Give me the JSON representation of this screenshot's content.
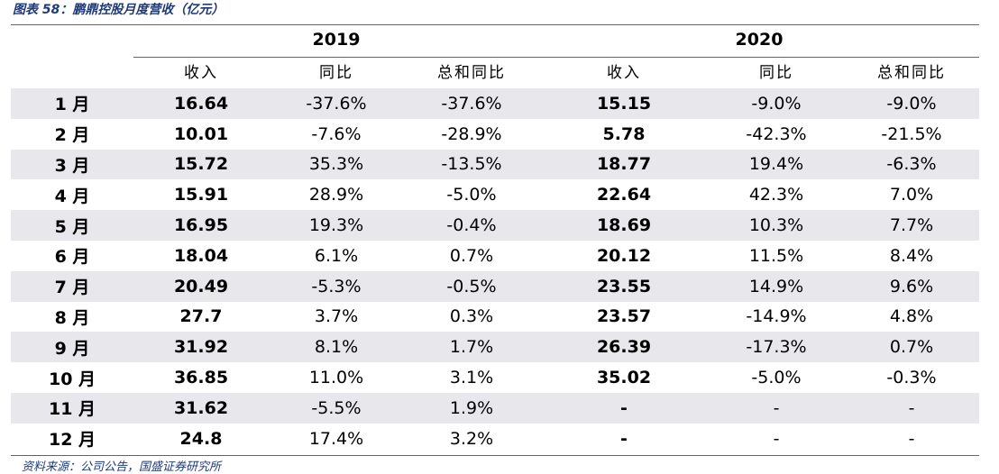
{
  "caption": "图表 58：鹏鼎控股月度营收（亿元）",
  "source": "资料来源：公司公告，国盛证券研究所",
  "years": [
    "2019",
    "2020"
  ],
  "columns": [
    "收入",
    "同比",
    "总和同比",
    "收入",
    "同比",
    "总和同比"
  ],
  "rows": [
    {
      "month": "1 月",
      "r2019": "16.64",
      "yoy2019": "-37.6%",
      "cum2019": "-37.6%",
      "r2020": "15.15",
      "yoy2020": "-9.0%",
      "cum2020": "-9.0%"
    },
    {
      "month": "2 月",
      "r2019": "10.01",
      "yoy2019": "-7.6%",
      "cum2019": "-28.9%",
      "r2020": "5.78",
      "yoy2020": "-42.3%",
      "cum2020": "-21.5%"
    },
    {
      "month": "3 月",
      "r2019": "15.72",
      "yoy2019": "35.3%",
      "cum2019": "-13.5%",
      "r2020": "18.77",
      "yoy2020": "19.4%",
      "cum2020": "-6.3%"
    },
    {
      "month": "4 月",
      "r2019": "15.91",
      "yoy2019": "28.9%",
      "cum2019": "-5.0%",
      "r2020": "22.64",
      "yoy2020": "42.3%",
      "cum2020": "7.0%"
    },
    {
      "month": "5 月",
      "r2019": "16.95",
      "yoy2019": "19.3%",
      "cum2019": "-0.4%",
      "r2020": "18.69",
      "yoy2020": "10.3%",
      "cum2020": "7.7%"
    },
    {
      "month": "6 月",
      "r2019": "18.04",
      "yoy2019": "6.1%",
      "cum2019": "0.7%",
      "r2020": "20.12",
      "yoy2020": "11.5%",
      "cum2020": "8.4%"
    },
    {
      "month": "7 月",
      "r2019": "20.49",
      "yoy2019": "-5.3%",
      "cum2019": "-0.5%",
      "r2020": "23.55",
      "yoy2020": "14.9%",
      "cum2020": "9.6%"
    },
    {
      "month": "8 月",
      "r2019": "27.7",
      "yoy2019": "3.7%",
      "cum2019": "0.3%",
      "r2020": "23.57",
      "yoy2020": "-14.9%",
      "cum2020": "4.8%"
    },
    {
      "month": "9 月",
      "r2019": "31.92",
      "yoy2019": "8.1%",
      "cum2019": "1.7%",
      "r2020": "26.39",
      "yoy2020": "-17.3%",
      "cum2020": "0.7%"
    },
    {
      "month": "10 月",
      "r2019": "36.85",
      "yoy2019": "11.0%",
      "cum2019": "3.1%",
      "r2020": "35.02",
      "yoy2020": "-5.0%",
      "cum2020": "-0.3%"
    },
    {
      "month": "11 月",
      "r2019": "31.62",
      "yoy2019": "-5.5%",
      "cum2019": "1.9%",
      "r2020": "-",
      "yoy2020": "-",
      "cum2020": "-"
    },
    {
      "month": "12 月",
      "r2019": "24.8",
      "yoy2019": "17.4%",
      "cum2019": "3.2%",
      "r2020": "-",
      "yoy2020": "-",
      "cum2020": "-"
    }
  ]
}
